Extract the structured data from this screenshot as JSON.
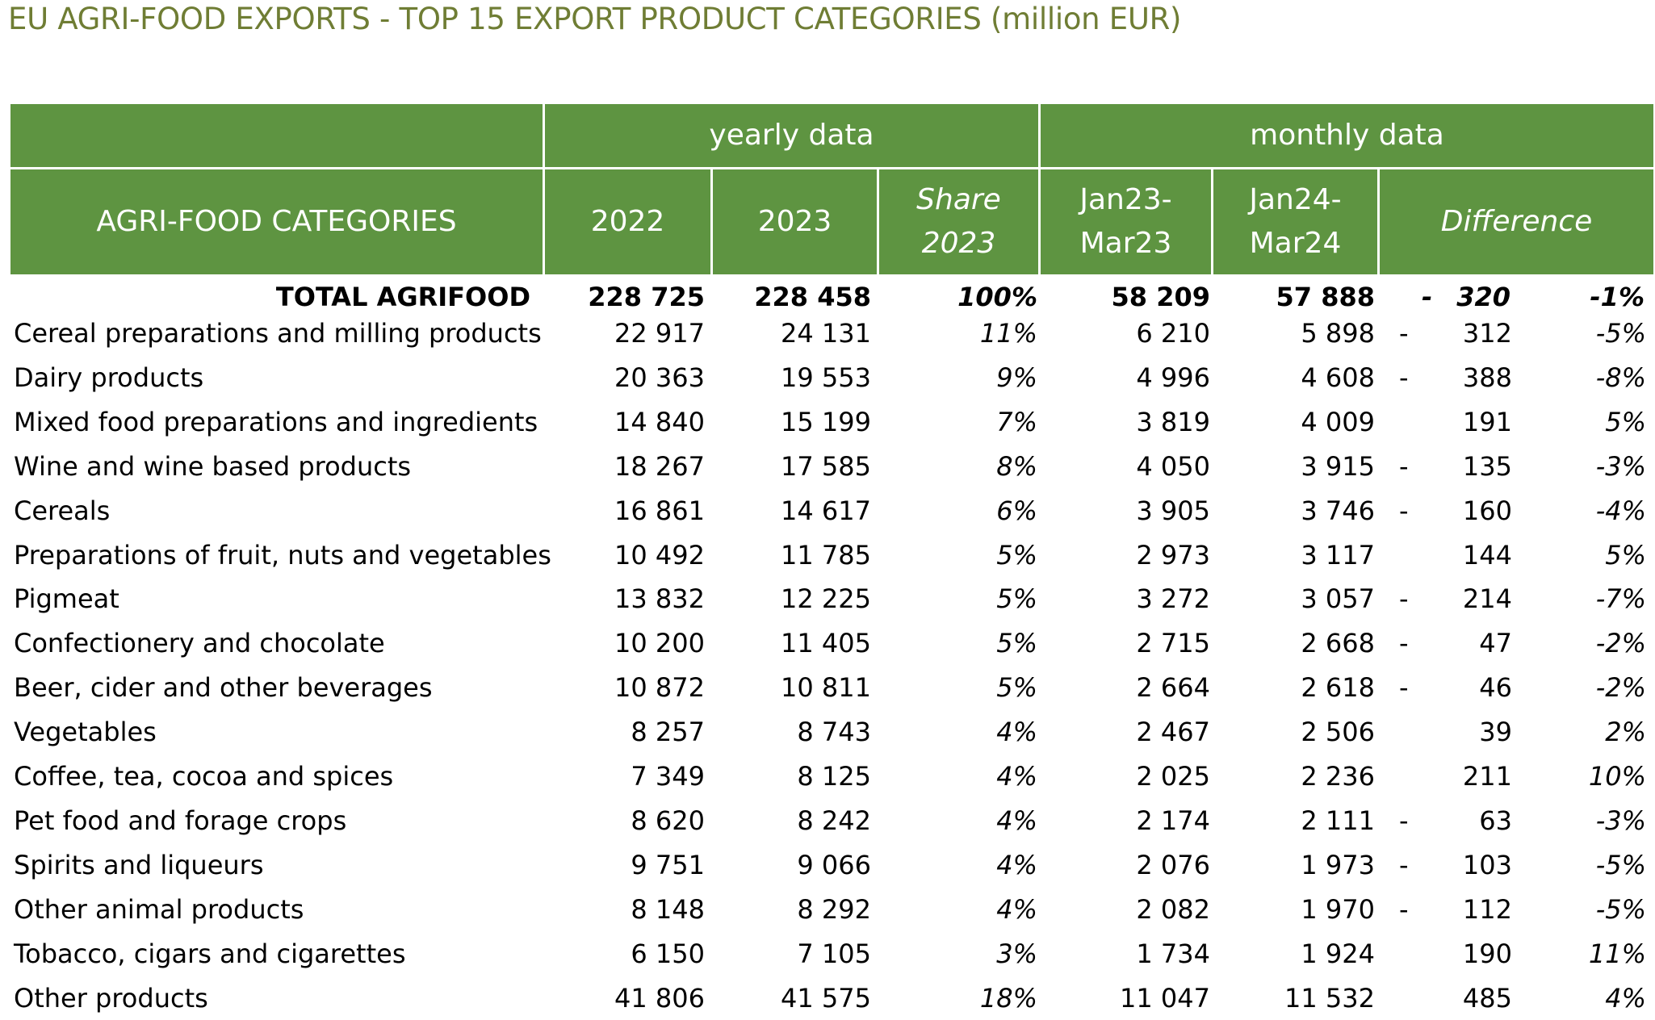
{
  "title": "EU AGRI-FOOD EXPORTS - TOP 15 EXPORT PRODUCT CATEGORIES (million EUR)",
  "colors": {
    "header_bg": "#5e9441",
    "title": "#6f7d34"
  },
  "header": {
    "yearly": "yearly data",
    "monthly": "monthly data",
    "categories": "AGRI-FOOD CATEGORIES",
    "y2022": "2022",
    "y2023": "2023",
    "share_line1": "Share",
    "share_line2": "2023",
    "m1_line1": "Jan23-",
    "m1_line2": "Mar23",
    "m2_line1": "Jan24-",
    "m2_line2": "Mar24",
    "difference": "Difference"
  },
  "total": {
    "category": "TOTAL AGRIFOOD",
    "y2022": "228 725",
    "y2023": "228 458",
    "share": "100%",
    "m1": "58 209",
    "m2": "57 888",
    "sign": "-",
    "diff": "320",
    "pct": "-1%"
  },
  "rows": [
    {
      "category": "Cereal preparations and milling products",
      "y2022": "22 917",
      "y2023": "24 131",
      "share": "11%",
      "m1": "6 210",
      "m2": "5 898",
      "sign": "-",
      "diff": "312",
      "pct": "-5%"
    },
    {
      "category": "Dairy products",
      "y2022": "20 363",
      "y2023": "19 553",
      "share": "9%",
      "m1": "4 996",
      "m2": "4 608",
      "sign": "-",
      "diff": "388",
      "pct": "-8%"
    },
    {
      "category": "Mixed food preparations and ingredients",
      "y2022": "14 840",
      "y2023": "15 199",
      "share": "7%",
      "m1": "3 819",
      "m2": "4 009",
      "sign": "",
      "diff": "191",
      "pct": "5%"
    },
    {
      "category": "Wine and wine based products",
      "y2022": "18 267",
      "y2023": "17 585",
      "share": "8%",
      "m1": "4 050",
      "m2": "3 915",
      "sign": "-",
      "diff": "135",
      "pct": "-3%"
    },
    {
      "category": "Cereals",
      "y2022": "16 861",
      "y2023": "14 617",
      "share": "6%",
      "m1": "3 905",
      "m2": "3 746",
      "sign": "-",
      "diff": "160",
      "pct": "-4%"
    },
    {
      "category": "Preparations of fruit, nuts and vegetables",
      "y2022": "10 492",
      "y2023": "11 785",
      "share": "5%",
      "m1": "2 973",
      "m2": "3 117",
      "sign": "",
      "diff": "144",
      "pct": "5%"
    },
    {
      "category": "Pigmeat",
      "y2022": "13 832",
      "y2023": "12 225",
      "share": "5%",
      "m1": "3 272",
      "m2": "3 057",
      "sign": "-",
      "diff": "214",
      "pct": "-7%"
    },
    {
      "category": "Confectionery and chocolate",
      "y2022": "10 200",
      "y2023": "11 405",
      "share": "5%",
      "m1": "2 715",
      "m2": "2 668",
      "sign": "-",
      "diff": "47",
      "pct": "-2%"
    },
    {
      "category": "Beer, cider and other beverages",
      "y2022": "10 872",
      "y2023": "10 811",
      "share": "5%",
      "m1": "2 664",
      "m2": "2 618",
      "sign": "-",
      "diff": "46",
      "pct": "-2%"
    },
    {
      "category": "Vegetables",
      "y2022": "8 257",
      "y2023": "8 743",
      "share": "4%",
      "m1": "2 467",
      "m2": "2 506",
      "sign": "",
      "diff": "39",
      "pct": "2%"
    },
    {
      "category": "Coffee, tea, cocoa and spices",
      "y2022": "7 349",
      "y2023": "8 125",
      "share": "4%",
      "m1": "2 025",
      "m2": "2 236",
      "sign": "",
      "diff": "211",
      "pct": "10%"
    },
    {
      "category": "Pet food and forage crops",
      "y2022": "8 620",
      "y2023": "8 242",
      "share": "4%",
      "m1": "2 174",
      "m2": "2 111",
      "sign": "-",
      "diff": "63",
      "pct": "-3%"
    },
    {
      "category": "Spirits and liqueurs",
      "y2022": "9 751",
      "y2023": "9 066",
      "share": "4%",
      "m1": "2 076",
      "m2": "1 973",
      "sign": "-",
      "diff": "103",
      "pct": "-5%"
    },
    {
      "category": "Other animal products",
      "y2022": "8 148",
      "y2023": "8 292",
      "share": "4%",
      "m1": "2 082",
      "m2": "1 970",
      "sign": "-",
      "diff": "112",
      "pct": "-5%"
    },
    {
      "category": "Tobacco, cigars and cigarettes",
      "y2022": "6 150",
      "y2023": "7 105",
      "share": "3%",
      "m1": "1 734",
      "m2": "1 924",
      "sign": "",
      "diff": "190",
      "pct": "11%"
    },
    {
      "category": "Other products",
      "y2022": "41 806",
      "y2023": "41 575",
      "share": "18%",
      "m1": "11 047",
      "m2": "11 532",
      "sign": "",
      "diff": "485",
      "pct": "4%"
    }
  ]
}
